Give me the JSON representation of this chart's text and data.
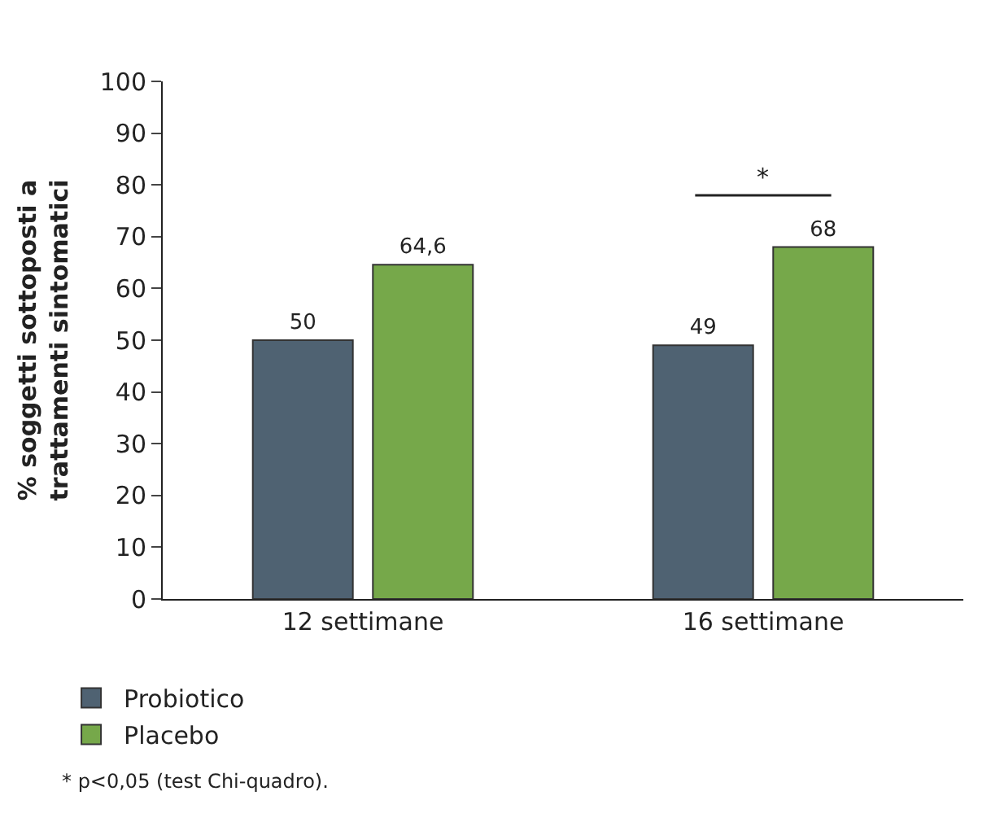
{
  "chart_data": {
    "type": "bar",
    "categories": [
      "12 settimane",
      "16 settimane"
    ],
    "ylabel": "% soggetti sottoposti a trattamenti sintomatici",
    "series": [
      {
        "name": "Probiotico",
        "color": "#4f6272",
        "values": [
          50,
          49
        ],
        "value_labels": [
          "50",
          "49"
        ]
      },
      {
        "name": "Placebo",
        "color": "#76a84a",
        "values": [
          64.6,
          68
        ],
        "value_labels": [
          "64,6",
          "68"
        ]
      }
    ],
    "ylim": [
      0,
      100
    ],
    "yticks": [
      0,
      10,
      20,
      30,
      40,
      50,
      60,
      70,
      80,
      90,
      100
    ],
    "legend": "bottom left",
    "annotations": [
      "*",
      "* p<0,05 (test Chi-quadro)."
    ]
  }
}
